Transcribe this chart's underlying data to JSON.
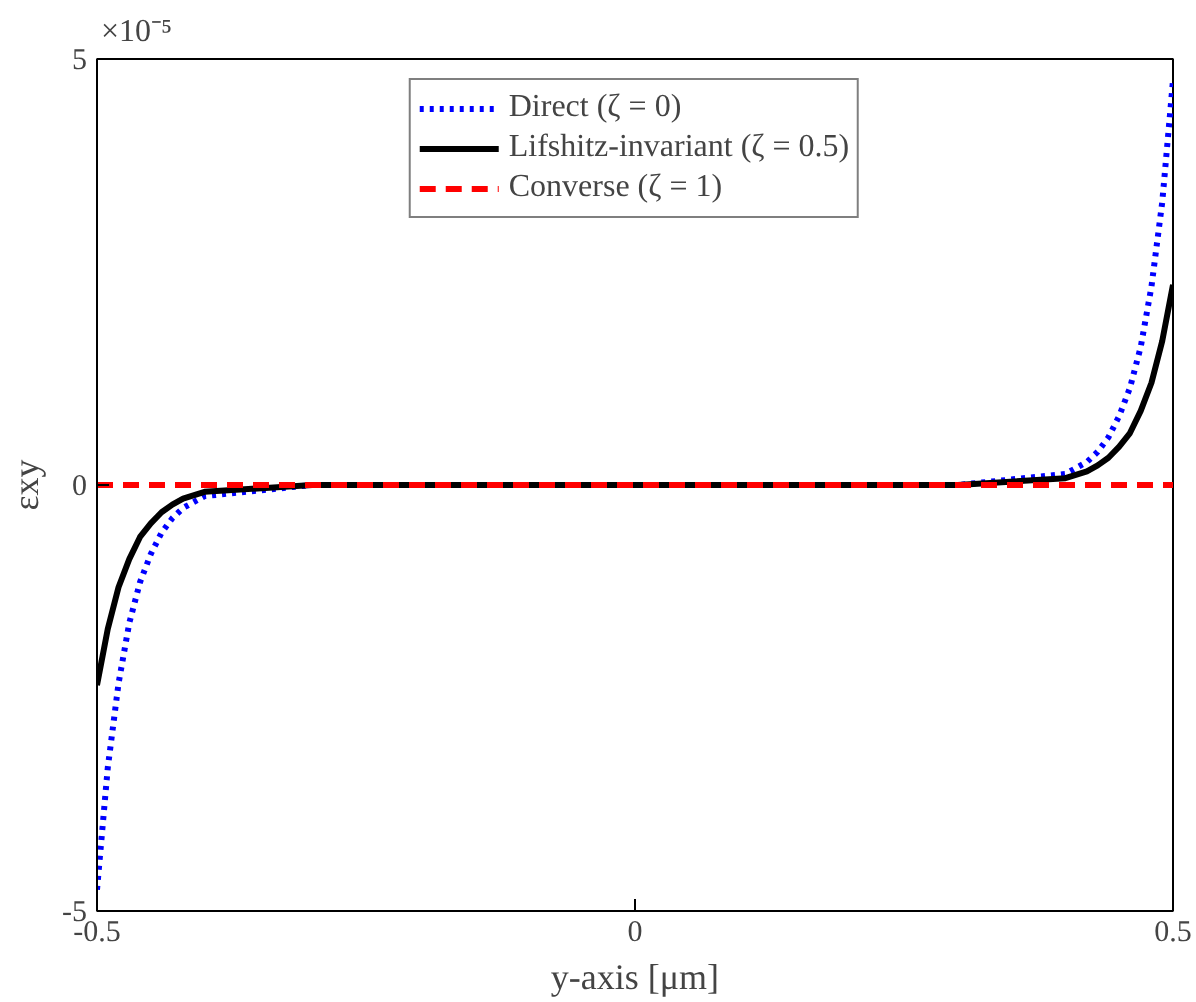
{
  "chart_data": {
    "type": "line",
    "xlabel": "y-axis [μm]",
    "ylabel": "εxy",
    "annotations": [
      "×10⁻⁵"
    ],
    "xlim": [
      -0.5,
      0.5
    ],
    "xticks": [
      -0.5,
      0,
      0.5
    ],
    "ylim": [
      -5,
      5
    ],
    "yticks": [
      -5,
      0,
      5
    ],
    "grid": false,
    "legend": "top",
    "marker": "none",
    "x": [
      -0.5,
      -0.49,
      -0.48,
      -0.47,
      -0.46,
      -0.45,
      -0.44,
      -0.43,
      -0.42,
      -0.4,
      -0.3,
      0,
      0.3,
      0.4,
      0.42,
      0.43,
      0.44,
      0.45,
      0.46,
      0.47,
      0.48,
      0.49,
      0.5
    ],
    "series": [
      {
        "name": "Direct (ζ = 0)",
        "color": "#0000ff",
        "line_style": "dotted",
        "values": [
          -4.75,
          -3.32,
          -2.33,
          -1.62,
          -1.14,
          -0.81,
          -0.56,
          -0.39,
          -0.27,
          -0.13,
          0,
          0,
          0,
          0.13,
          0.27,
          0.39,
          0.56,
          0.81,
          1.14,
          1.62,
          2.33,
          3.32,
          4.75
        ]
      },
      {
        "name": "Lifshitz-invariant (ζ = 0.5)",
        "color": "#000000",
        "line_style": "solid",
        "values": [
          -2.35,
          -1.69,
          -1.2,
          -0.87,
          -0.61,
          -0.45,
          -0.32,
          -0.23,
          -0.16,
          -0.08,
          0,
          0,
          0,
          0.08,
          0.16,
          0.23,
          0.32,
          0.45,
          0.61,
          0.87,
          1.2,
          1.69,
          2.35
        ]
      },
      {
        "name": "Converse (ζ = 1)",
        "color": "#ff0000",
        "line_style": "dashed",
        "values": [
          0,
          0,
          0,
          0,
          0,
          0,
          0,
          0,
          0,
          0,
          0,
          0,
          0,
          0,
          0,
          0,
          0,
          0,
          0,
          0,
          0,
          0,
          0
        ]
      }
    ]
  }
}
